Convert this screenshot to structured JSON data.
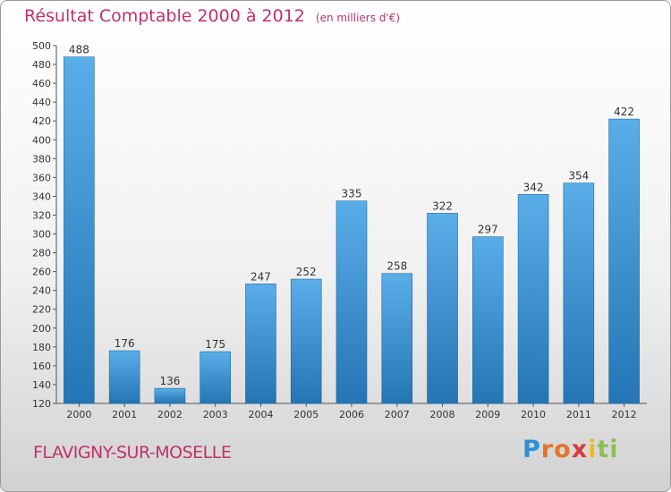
{
  "header": {
    "title": "Résultat Comptable 2000 à 2012",
    "subtitle": "(en milliers d'€)"
  },
  "footer": {
    "town": "FLAVIGNY-SUR-MOSELLE",
    "logo": "Proxiti"
  },
  "colors": {
    "title": "#c0326a",
    "bar_top": "#5aaee8",
    "bar_bottom": "#2475b4"
  },
  "chart_data": {
    "type": "bar",
    "title": "Résultat Comptable 2000 à 2012",
    "subtitle": "(en milliers d'€)",
    "categories": [
      "2000",
      "2001",
      "2002",
      "2003",
      "2004",
      "2005",
      "2006",
      "2007",
      "2008",
      "2009",
      "2010",
      "2011",
      "2012"
    ],
    "values": [
      488,
      176,
      136,
      175,
      247,
      252,
      335,
      258,
      322,
      297,
      342,
      354,
      422
    ],
    "ylim": [
      120,
      500
    ],
    "yticks": [
      120,
      140,
      160,
      180,
      200,
      220,
      240,
      260,
      280,
      300,
      320,
      340,
      360,
      380,
      400,
      420,
      440,
      460,
      480,
      500
    ],
    "grid": false,
    "legend": "none"
  }
}
